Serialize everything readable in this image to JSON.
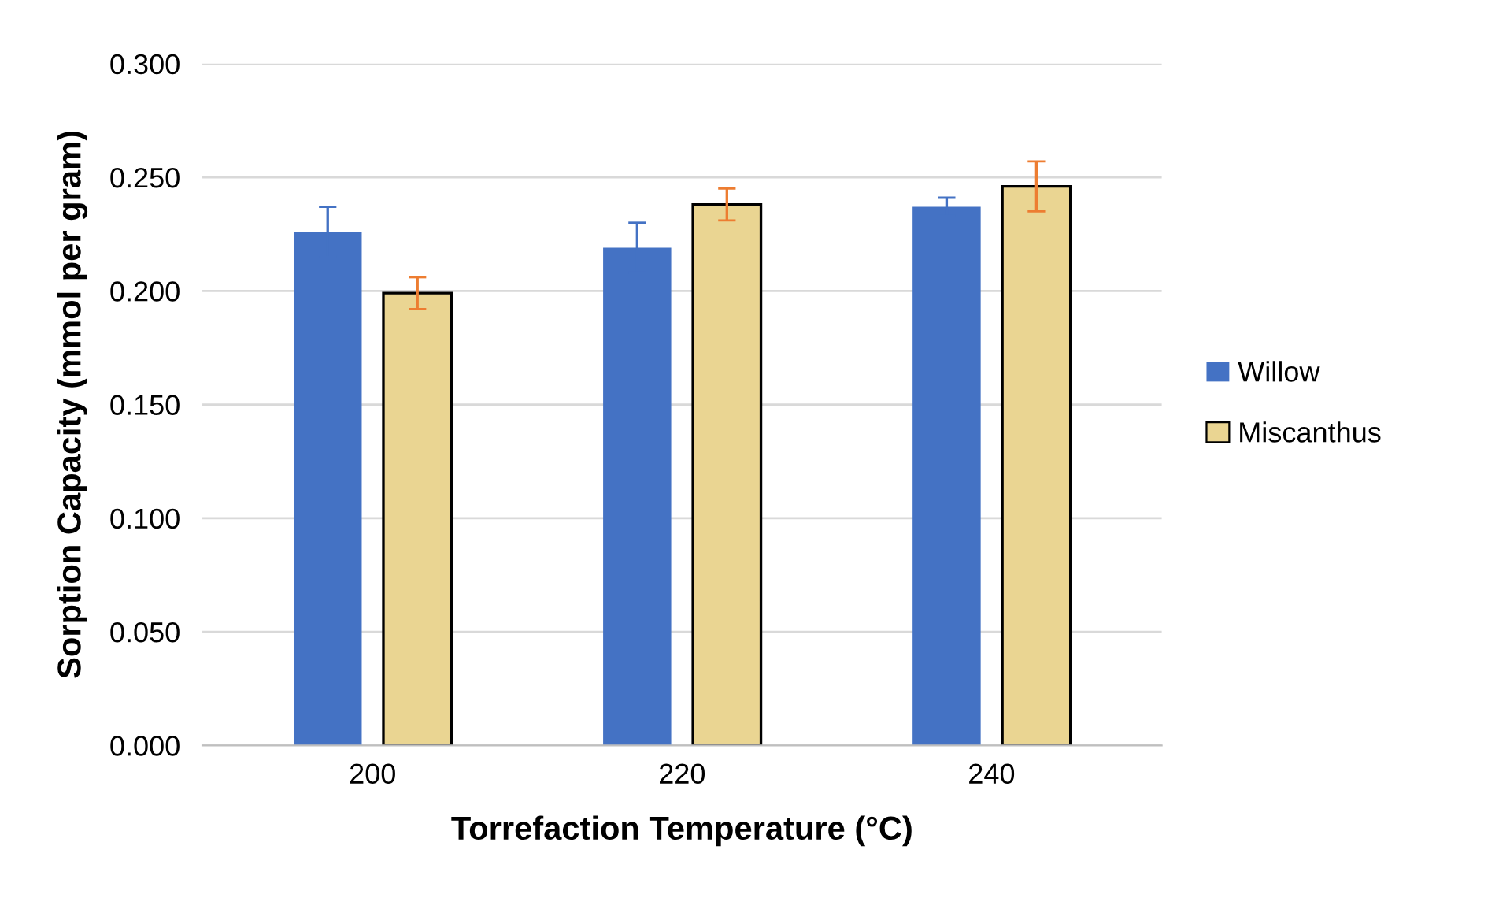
{
  "chart_data": {
    "type": "bar",
    "xlabel": "Torrefaction Temperature (°C)",
    "ylabel": "Sorption Capacity (mmol per gram)",
    "categories": [
      "200",
      "220",
      "240"
    ],
    "series": [
      {
        "name": "Willow",
        "color": "#4472c4",
        "values": [
          0.226,
          0.219,
          0.237
        ],
        "errors": [
          0.011,
          0.011,
          0.004
        ]
      },
      {
        "name": "Miscanthus",
        "color": "#ead592",
        "values": [
          0.199,
          0.238,
          0.246
        ],
        "errors": [
          0.007,
          0.007,
          0.011
        ]
      }
    ],
    "ylim": [
      0,
      0.3
    ],
    "yticks": [
      {
        "value": 0,
        "label": "0.000"
      },
      {
        "value": 0.05,
        "label": "0.050"
      },
      {
        "value": 0.1,
        "label": "0.100"
      },
      {
        "value": 0.15,
        "label": "0.150"
      },
      {
        "value": 0.2,
        "label": "0.200"
      },
      {
        "value": 0.25,
        "label": "0.250"
      },
      {
        "value": 0.3,
        "label": "0.300"
      }
    ],
    "grid": "y",
    "legend": "right"
  }
}
